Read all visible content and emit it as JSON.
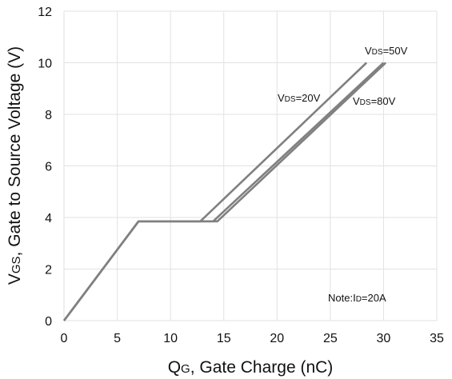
{
  "chart_data": {
    "type": "line",
    "title": "",
    "xlabel": {
      "main": "Q",
      "sub": "G",
      "rest": ", Gate Charge (nC)"
    },
    "ylabel": {
      "main": "V",
      "sub": "GS",
      "rest": ", Gate to Source Voltage (V)"
    },
    "xlim": [
      0,
      35
    ],
    "ylim": [
      0,
      12
    ],
    "xticks": [
      0,
      5,
      10,
      15,
      20,
      25,
      30,
      35
    ],
    "yticks": [
      0,
      2,
      4,
      6,
      8,
      10,
      12
    ],
    "grid": true,
    "legend": "none",
    "series_color": "#808080",
    "series": [
      {
        "label_main": "V",
        "label_sub": "DS",
        "label_rest": "=20V",
        "x": [
          0,
          7.0,
          12.8,
          28.4
        ],
        "y": [
          0,
          3.85,
          3.85,
          10.0
        ]
      },
      {
        "label_main": "V",
        "label_sub": "DS",
        "label_rest": "=50V",
        "x": [
          0,
          7.0,
          14.0,
          30.0
        ],
        "y": [
          0,
          3.85,
          3.85,
          10.0
        ]
      },
      {
        "label_main": "V",
        "label_sub": "DS",
        "label_rest": "=80V",
        "x": [
          0,
          7.0,
          14.4,
          30.2
        ],
        "y": [
          0,
          3.85,
          3.85,
          10.0
        ]
      }
    ],
    "annotation": {
      "main": "Note:I",
      "sub": "D",
      "rest": "=20A"
    }
  }
}
